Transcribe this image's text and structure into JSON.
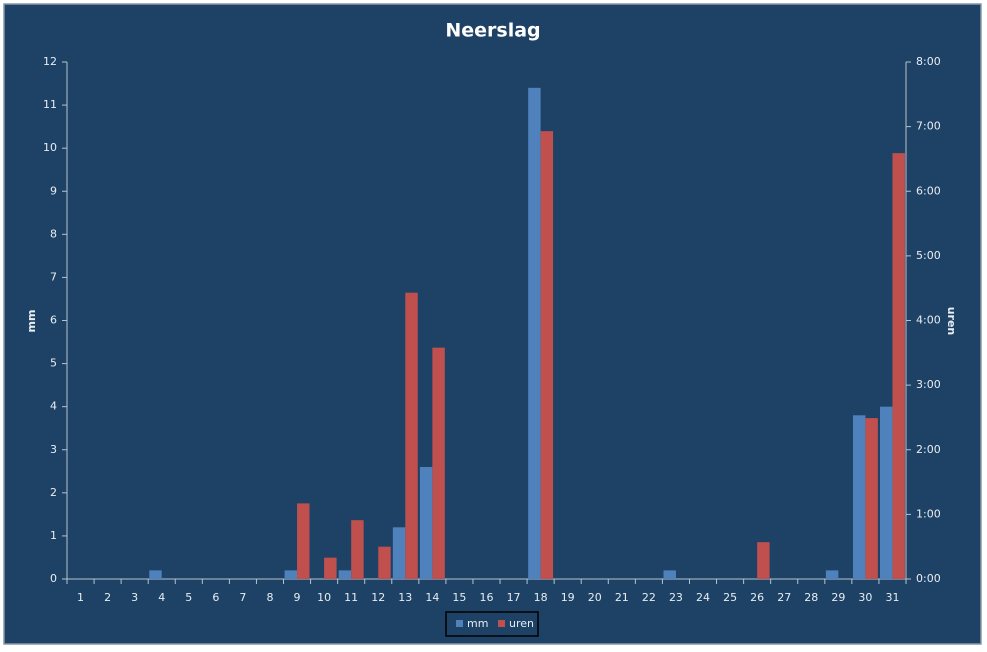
{
  "chart_data": {
    "type": "bar",
    "title": "Neerslag",
    "y_label": "mm",
    "y2_label": "uren",
    "categories": [
      "1",
      "2",
      "3",
      "4",
      "5",
      "6",
      "7",
      "8",
      "9",
      "10",
      "11",
      "12",
      "13",
      "14",
      "15",
      "16",
      "17",
      "18",
      "19",
      "20",
      "21",
      "22",
      "23",
      "24",
      "25",
      "26",
      "27",
      "28",
      "29",
      "30",
      "31"
    ],
    "series": [
      {
        "name": "mm",
        "color": "#4f81bd",
        "values": [
          0,
          0,
          0,
          0.2,
          0,
          0,
          0,
          0,
          0.2,
          0,
          0.2,
          0,
          1.2,
          2.6,
          0,
          0,
          0,
          11.4,
          0,
          0,
          0,
          0,
          0.2,
          0,
          0,
          0,
          0,
          0,
          0.2,
          3.8,
          4.0
        ]
      },
      {
        "name": "uren",
        "color": "#c0504d",
        "axis": "y2",
        "values": [
          0,
          0,
          0,
          0,
          0,
          0,
          0,
          0,
          1.17,
          0.33,
          0.91,
          0.5,
          4.43,
          3.58,
          0,
          0,
          0,
          6.93,
          0,
          0,
          0,
          0,
          0,
          0,
          0,
          0.57,
          0,
          0,
          0,
          2.49,
          6.59
        ]
      }
    ],
    "ylim": [
      0,
      12
    ],
    "yticks": [
      0,
      1,
      2,
      3,
      4,
      5,
      6,
      7,
      8,
      9,
      10,
      11,
      12
    ],
    "y2lim": [
      0,
      8
    ],
    "y2ticks": [
      {
        "value": 0,
        "label": "0:00"
      },
      {
        "value": 1,
        "label": "1:00"
      },
      {
        "value": 2,
        "label": "2:00"
      },
      {
        "value": 3,
        "label": "3:00"
      },
      {
        "value": 4,
        "label": "4:00"
      },
      {
        "value": 5,
        "label": "5:00"
      },
      {
        "value": 6,
        "label": "6:00"
      },
      {
        "value": 7,
        "label": "7:00"
      },
      {
        "value": 8,
        "label": "8:00"
      }
    ],
    "grid": false,
    "legend": "bottom"
  }
}
